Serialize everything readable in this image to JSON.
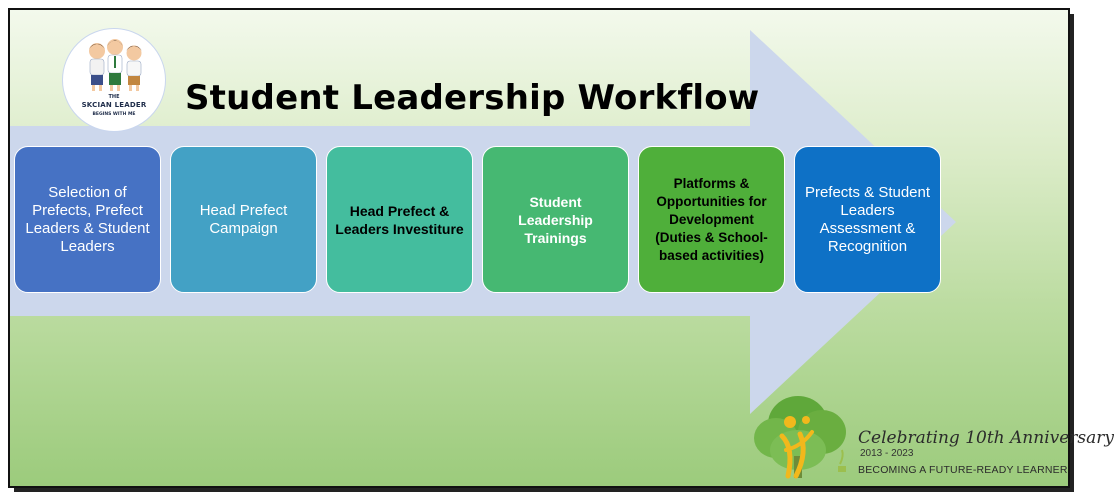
{
  "title": "Student Leadership Workflow",
  "logo": {
    "line_top": "THE",
    "line1": "SKCIAN LEADER",
    "line2": "BEGINS WITH ME"
  },
  "steps": [
    {
      "label": "Selection of Prefects, Prefect Leaders & Student Leaders",
      "color": "#4672c4"
    },
    {
      "label": "Head Prefect Campaign",
      "color": "#43a1c5"
    },
    {
      "label": "Head Prefect & Leaders Investiture",
      "color": "#44bd9e"
    },
    {
      "label": "Student Leadership Trainings",
      "color": "#46b872"
    },
    {
      "label": "Platforms & Opportunities for Development (Duties & School-based activities)",
      "color": "#4faf3a"
    },
    {
      "label": "Prefects & Student Leaders Assessment & Recognition",
      "color": "#0e71c6"
    }
  ],
  "anniversary": {
    "title": "Celebrating 10th Anniversary",
    "years": "2013 - 2023",
    "tagline": "BECOMING A FUTURE-READY LEARNER"
  },
  "colors": {
    "arrow": "#ccd7ec",
    "background_top": "#f3f9ec",
    "background_bottom": "#9ccb7c"
  }
}
